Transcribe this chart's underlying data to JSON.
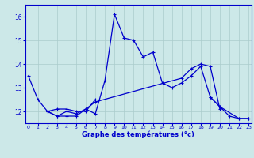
{
  "title": "",
  "xlabel": "Graphe des températures (°c)",
  "background_color": "#cce8e8",
  "grid_color": "#aacccc",
  "line_color": "#0000cc",
  "x_ticks": [
    0,
    1,
    2,
    3,
    4,
    5,
    6,
    7,
    8,
    9,
    10,
    11,
    12,
    13,
    14,
    15,
    16,
    17,
    18,
    19,
    20,
    21,
    22,
    23
  ],
  "ylim": [
    11.5,
    16.5
  ],
  "xlim": [
    -0.3,
    23.3
  ],
  "yticks": [
    12,
    13,
    14,
    15,
    16
  ],
  "series": [
    [
      13.5,
      12.5,
      12.0,
      11.8,
      11.8,
      11.8,
      12.1,
      11.9,
      13.3,
      16.1,
      15.1,
      15.0,
      14.3,
      14.5,
      13.2,
      13.0,
      13.2,
      13.5,
      13.9,
      12.6,
      12.2,
      11.8,
      11.7,
      11.7
    ],
    [
      null,
      null,
      12.0,
      11.8,
      12.0,
      11.9,
      12.1,
      12.4,
      null,
      null,
      null,
      null,
      null,
      null,
      null,
      null,
      13.4,
      13.8,
      14.0,
      13.9,
      12.1,
      null,
      null,
      null
    ],
    [
      null,
      null,
      null,
      null,
      null,
      null,
      null,
      null,
      null,
      null,
      null,
      null,
      null,
      null,
      null,
      null,
      null,
      null,
      null,
      12.6,
      12.2,
      null,
      11.7,
      11.7
    ],
    [
      null,
      null,
      12.0,
      12.1,
      12.1,
      12.0,
      12.0,
      12.5,
      null,
      null,
      null,
      null,
      null,
      null,
      null,
      null,
      null,
      null,
      null,
      null,
      null,
      null,
      null,
      null
    ]
  ]
}
